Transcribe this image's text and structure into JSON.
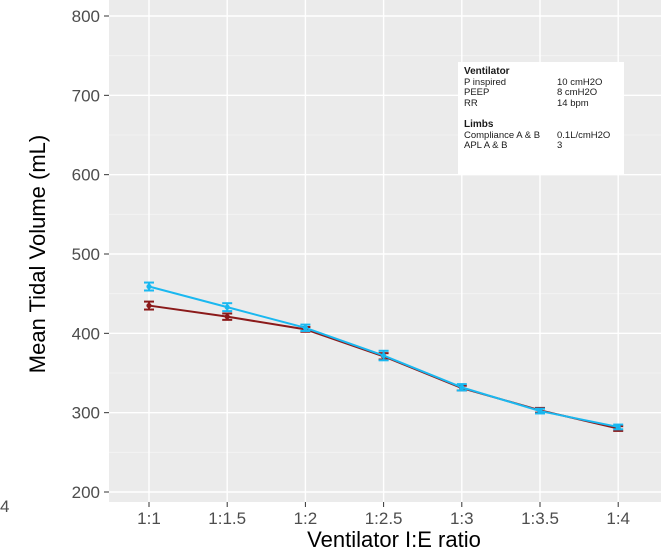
{
  "chart_data": {
    "type": "line",
    "xlabel": "Ventilator I:E ratio",
    "ylabel": "Mean Tidal Volume (mL)",
    "categories": [
      "1:1",
      "1:1.5",
      "1:2",
      "1:2.5",
      "1:3",
      "1:3.5",
      "1:4"
    ],
    "ylim": [
      200,
      800
    ],
    "yticks": [
      200,
      300,
      400,
      500,
      600,
      700,
      800
    ],
    "grid": true,
    "series": [
      {
        "color": "#8b1a1a",
        "values": [
          435,
          421,
          405,
          371,
          331,
          303,
          280
        ],
        "error": [
          5,
          4,
          3,
          4,
          3,
          3,
          3
        ]
      },
      {
        "color": "#1ab8f0",
        "values": [
          459,
          433,
          407,
          372,
          332,
          302,
          282
        ],
        "error": [
          5,
          5,
          4,
          6,
          4,
          3,
          3
        ]
      }
    ],
    "annotation": {
      "sections": [
        {
          "title": "Ventilator",
          "rows": [
            [
              "P inspired",
              "10 cmH2O"
            ],
            [
              "PEEP",
              "8 cmH2O"
            ],
            [
              "RR",
              "14 bpm"
            ]
          ]
        },
        {
          "title": "Limbs",
          "rows": [
            [
              "Compliance A & B",
              "0.1L/cmH2O"
            ],
            [
              "APL A & B",
              "3"
            ]
          ]
        }
      ]
    },
    "cropped_left_label": "4"
  }
}
